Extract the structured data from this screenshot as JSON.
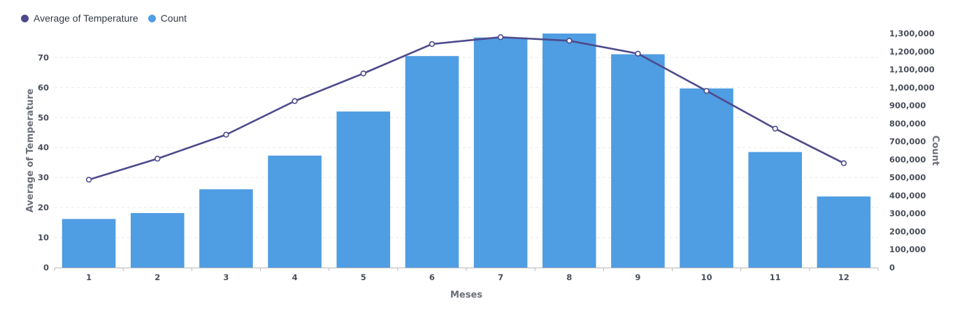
{
  "colors": {
    "temperature": "#4e4a8c",
    "count": "#4f9de3",
    "grid": "#e9e9e9",
    "axis": "#b8b8b8"
  },
  "legend": {
    "temperature_label": "Average of Temperature",
    "count_label": "Count"
  },
  "chart_data": {
    "type": "bar+line",
    "xlabel": "Meses",
    "ylabel_left": "Average of Temperature",
    "ylabel_right": "Count",
    "categories": [
      "1",
      "2",
      "3",
      "4",
      "5",
      "6",
      "7",
      "8",
      "9",
      "10",
      "11",
      "12"
    ],
    "series": [
      {
        "name": "Count",
        "type": "bar",
        "axis": "right",
        "values": [
          270000,
          303000,
          435000,
          622000,
          867000,
          1175000,
          1278000,
          1300000,
          1185000,
          995000,
          642000,
          395000
        ]
      },
      {
        "name": "Average of Temperature",
        "type": "line",
        "axis": "left",
        "values": [
          29.3,
          36.3,
          44.3,
          55.5,
          64.7,
          74.5,
          76.8,
          75.6,
          71.3,
          58.9,
          46.3,
          34.8
        ]
      }
    ],
    "ylim_left": [
      0,
      78
    ],
    "yticks_left": [
      0,
      10,
      20,
      30,
      40,
      50,
      60,
      70
    ],
    "ylim_right": [
      0,
      1300000
    ],
    "yticks_right": [
      0,
      100000,
      200000,
      300000,
      400000,
      500000,
      600000,
      700000,
      800000,
      900000,
      1000000,
      1100000,
      1200000,
      1300000
    ],
    "yticks_right_labels": [
      "0",
      "100,000",
      "200,000",
      "300,000",
      "400,000",
      "500,000",
      "600,000",
      "700,000",
      "800,000",
      "900,000",
      "1,000,000",
      "1,100,000",
      "1,200,000",
      "1,300,000"
    ],
    "grid": true,
    "legend_position": "top-left"
  }
}
